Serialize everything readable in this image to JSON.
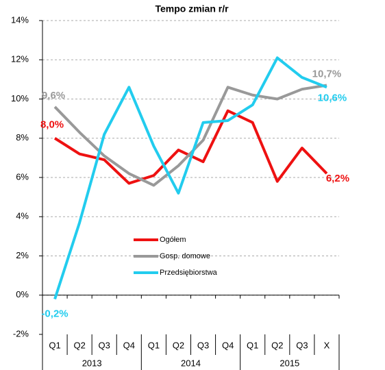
{
  "chart_data": {
    "type": "line",
    "title": "Tempo zmian r/r",
    "categories": [
      "Q1",
      "Q2",
      "Q3",
      "Q4",
      "Q1",
      "Q2",
      "Q3",
      "Q4",
      "Q1",
      "Q2",
      "Q3",
      "X"
    ],
    "groups": [
      "2013",
      "2014",
      "2015"
    ],
    "ylim": [
      -2,
      14
    ],
    "yticks": [
      {
        "value": -2,
        "label": "-2%"
      },
      {
        "value": 0,
        "label": "0%"
      },
      {
        "value": 2,
        "label": "2%"
      },
      {
        "value": 4,
        "label": "4%"
      },
      {
        "value": 6,
        "label": "6%"
      },
      {
        "value": 8,
        "label": "8%"
      },
      {
        "value": 10,
        "label": "10%"
      },
      {
        "value": 12,
        "label": "12%"
      },
      {
        "value": 14,
        "label": "14%"
      }
    ],
    "grid": true,
    "series": [
      {
        "name": "Ogółem",
        "color": "#ee1111",
        "values": [
          8.0,
          7.2,
          6.9,
          5.7,
          6.1,
          7.4,
          6.8,
          9.4,
          8.8,
          5.8,
          7.5,
          6.2
        ],
        "value_labels": [
          "8,0%",
          null,
          null,
          null,
          null,
          null,
          null,
          null,
          null,
          null,
          null,
          "6,2%"
        ]
      },
      {
        "name": "Gosp. domowe",
        "color": "#999999",
        "values": [
          9.6,
          8.3,
          7.1,
          6.2,
          5.6,
          6.6,
          7.9,
          10.6,
          10.2,
          10.0,
          10.5,
          10.7
        ],
        "value_labels": [
          "9,6%",
          null,
          null,
          null,
          null,
          null,
          null,
          null,
          null,
          null,
          null,
          "10,7%"
        ]
      },
      {
        "name": "Przedsiębiorstwa",
        "color": "#22ccee",
        "values": [
          -0.2,
          3.7,
          8.2,
          10.6,
          7.6,
          5.2,
          8.8,
          8.9,
          9.7,
          12.1,
          11.1,
          10.6
        ],
        "value_labels": [
          "-0,2%",
          null,
          null,
          null,
          null,
          null,
          null,
          null,
          null,
          null,
          null,
          "10,6%"
        ]
      }
    ]
  }
}
